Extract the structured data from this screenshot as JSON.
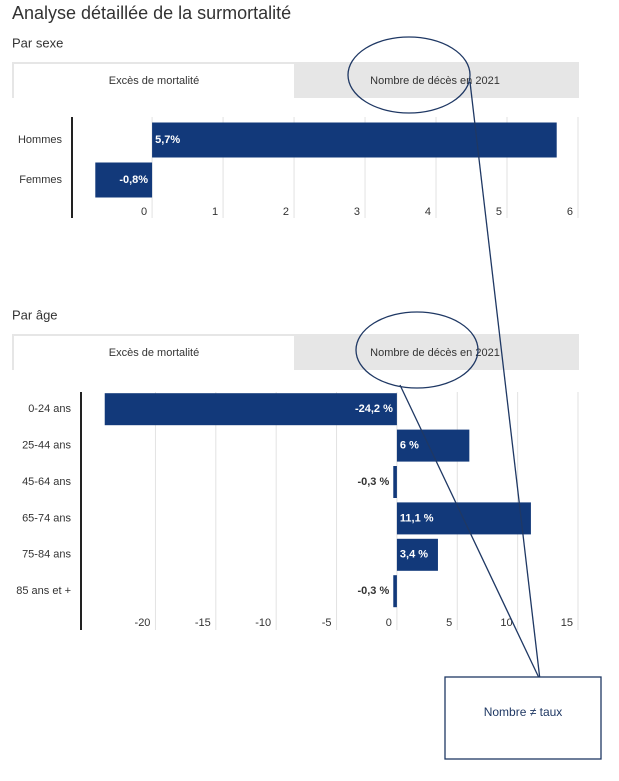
{
  "title": "Analyse détaillée de la surmortalité",
  "annotation": "Nombre ≠ taux",
  "chart_data": [
    {
      "type": "bar",
      "orientation": "horizontal",
      "subtitle": "Par sexe",
      "tabs": [
        "Excès de mortalité",
        "Nombre de décès en 2021"
      ],
      "categories": [
        "Hommes",
        "Femmes"
      ],
      "values": [
        5.7,
        -0.8
      ],
      "value_labels": [
        "5,7%",
        "-0,8%"
      ],
      "color": "#12397a",
      "xlim": [
        -1.1,
        6
      ],
      "xticks": [
        0,
        1,
        2,
        3,
        4,
        5,
        6
      ],
      "grid": true
    },
    {
      "type": "bar",
      "orientation": "horizontal",
      "subtitle": "Par âge",
      "tabs": [
        "Excès de mortalité",
        "Nombre de décès en 2021"
      ],
      "categories": [
        "0-24 ans",
        "25-44 ans",
        "45-64 ans",
        "65-74 ans",
        "75-84 ans",
        "85 ans et +"
      ],
      "values": [
        -24.2,
        6,
        -0.3,
        11.1,
        3.4,
        -0.3
      ],
      "value_labels": [
        "-24,2 %",
        "6 %",
        "-0,3 %",
        "11,1 %",
        "3,4 %",
        "-0,3 %"
      ],
      "color": "#12397a",
      "xlim": [
        -26,
        15
      ],
      "xticks": [
        -20,
        -15,
        -10,
        -5,
        0,
        5,
        10,
        15
      ],
      "grid": true
    }
  ]
}
